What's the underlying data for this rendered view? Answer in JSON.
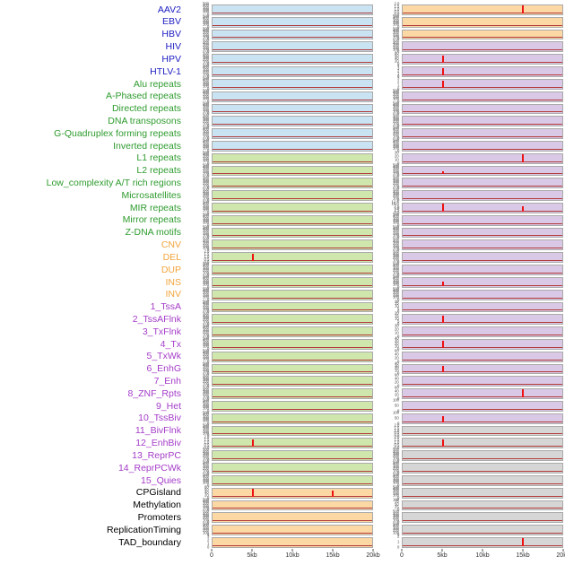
{
  "chart_data": {
    "type": "area",
    "subtype": "multi-track genomic signal tracks (two panels per annotation row, signal near zero with red spikes)",
    "x_axis": {
      "ticks": [
        "0",
        "5kb",
        "10kb",
        "15kb",
        "20kb"
      ],
      "min_kb": 0,
      "max_kb": 20
    },
    "legend_position": "none",
    "grid": false,
    "colors": {
      "labels": {
        "virus": "#1c1cc2",
        "repeat": "#2e9b2e",
        "sv": "#f2a43c",
        "chromhmm": "#a43cc8",
        "other": "#000000"
      },
      "panels": {
        "blue": "#c9e3f2",
        "green": "#cfe6ad",
        "orange": "#fcd8a4",
        "purple": "#dac9e6",
        "gray": "#d6d6d6"
      },
      "spike": "#ee1111",
      "baseline": "#b23b3b",
      "panel_border": "#aaaaaa"
    },
    "default_yticks": [
      "500",
      "400",
      "300",
      "200",
      "100",
      "0"
    ],
    "rows": [
      {
        "label": "AAV2",
        "group": "virus",
        "left": {
          "bg": "blue"
        },
        "right": {
          "bg": "orange",
          "yticks": [
            "2.0",
            "1.5",
            "1.0",
            "0.5",
            "0.0"
          ],
          "spikes": [
            {
              "x_kb": 15,
              "h": 0.88
            }
          ]
        }
      },
      {
        "label": "EBV",
        "group": "virus",
        "left": {
          "bg": "blue"
        },
        "right": {
          "bg": "orange"
        }
      },
      {
        "label": "HBV",
        "group": "virus",
        "left": {
          "bg": "blue"
        },
        "right": {
          "bg": "orange"
        }
      },
      {
        "label": "HIV",
        "group": "virus",
        "left": {
          "bg": "blue"
        },
        "right": {
          "bg": "purple"
        }
      },
      {
        "label": "HPV",
        "group": "virus",
        "left": {
          "bg": "blue"
        },
        "right": {
          "bg": "purple",
          "yticks": [
            "80",
            "60",
            "40",
            "20",
            "0"
          ],
          "spikes": [
            {
              "x_kb": 5,
              "h": 0.85
            }
          ]
        }
      },
      {
        "label": "HTLV-1",
        "group": "virus",
        "left": {
          "bg": "blue"
        },
        "right": {
          "bg": "purple",
          "yticks": [
            "4",
            "3",
            "2",
            "1",
            "0"
          ],
          "spikes": [
            {
              "x_kb": 5,
              "h": 0.8
            }
          ]
        }
      },
      {
        "label": "Alu repeats",
        "group": "repeat",
        "left": {
          "bg": "blue"
        },
        "right": {
          "bg": "purple",
          "yticks": [
            "3",
            "2",
            "1",
            "0"
          ],
          "spikes": [
            {
              "x_kb": 5,
              "h": 0.75
            }
          ]
        }
      },
      {
        "label": "A-Phased repeats",
        "group": "repeat",
        "left": {
          "bg": "blue"
        },
        "right": {
          "bg": "purple"
        }
      },
      {
        "label": "Directed repeats",
        "group": "repeat",
        "left": {
          "bg": "blue"
        },
        "right": {
          "bg": "purple"
        }
      },
      {
        "label": "DNA transposons",
        "group": "repeat",
        "left": {
          "bg": "blue"
        },
        "right": {
          "bg": "purple"
        }
      },
      {
        "label": "G-Quadruplex forming repeats",
        "group": "repeat",
        "left": {
          "bg": "blue"
        },
        "right": {
          "bg": "purple"
        }
      },
      {
        "label": "Inverted repeats",
        "group": "repeat",
        "left": {
          "bg": "blue"
        },
        "right": {
          "bg": "purple"
        }
      },
      {
        "label": "L1 repeats",
        "group": "repeat",
        "left": {
          "bg": "green"
        },
        "right": {
          "bg": "purple",
          "yticks": [
            "30",
            "20",
            "10",
            "0"
          ],
          "spikes": [
            {
              "x_kb": 15,
              "h": 0.85
            }
          ]
        }
      },
      {
        "label": "L2 repeats",
        "group": "repeat",
        "left": {
          "bg": "green"
        },
        "right": {
          "bg": "purple",
          "spikes": [
            {
              "x_kb": 5,
              "h": 0.35
            }
          ]
        }
      },
      {
        "label": "Low_complexity A/T rich regions",
        "group": "repeat",
        "left": {
          "bg": "green"
        },
        "right": {
          "bg": "purple"
        }
      },
      {
        "label": "Microsatellites",
        "group": "repeat",
        "left": {
          "bg": "green"
        },
        "right": {
          "bg": "purple"
        }
      },
      {
        "label": "MIR repeats",
        "group": "repeat",
        "left": {
          "bg": "green"
        },
        "right": {
          "bg": "purple",
          "yticks": [
            "12.5",
            "10.0",
            "7.5",
            "5.0",
            "2.5",
            "0.0"
          ],
          "spikes": [
            {
              "x_kb": 5,
              "h": 0.85
            },
            {
              "x_kb": 15,
              "h": 0.55
            }
          ]
        }
      },
      {
        "label": "Mirror repeats",
        "group": "repeat",
        "left": {
          "bg": "green"
        },
        "right": {
          "bg": "purple"
        }
      },
      {
        "label": "Z-DNA motifs",
        "group": "repeat",
        "left": {
          "bg": "green"
        },
        "right": {
          "bg": "purple"
        }
      },
      {
        "label": "CNV",
        "group": "sv",
        "left": {
          "bg": "green"
        },
        "right": {
          "bg": "purple"
        }
      },
      {
        "label": "DEL",
        "group": "sv",
        "left": {
          "bg": "green",
          "yticks": [
            "2.0",
            "1.5",
            "1.0",
            "0.5",
            "0.0"
          ],
          "spikes": [
            {
              "x_kb": 5,
              "h": 0.85
            }
          ]
        },
        "right": {
          "bg": "purple"
        }
      },
      {
        "label": "DUP",
        "group": "sv",
        "left": {
          "bg": "green"
        },
        "right": {
          "bg": "purple"
        }
      },
      {
        "label": "INS",
        "group": "sv",
        "left": {
          "bg": "green"
        },
        "right": {
          "bg": "purple",
          "spikes": [
            {
              "x_kb": 5,
              "h": 0.5
            }
          ]
        }
      },
      {
        "label": "INV",
        "group": "sv",
        "left": {
          "bg": "green"
        },
        "right": {
          "bg": "purple"
        }
      },
      {
        "label": "1_TssA",
        "group": "chromhmm",
        "left": {
          "bg": "green"
        },
        "right": {
          "bg": "purple",
          "yticks": [
            "20",
            "15",
            "10",
            "5",
            "0"
          ]
        }
      },
      {
        "label": "2_TssAFlnk",
        "group": "chromhmm",
        "left": {
          "bg": "green"
        },
        "right": {
          "bg": "purple",
          "yticks": [
            "20",
            "15",
            "10",
            "5",
            "0"
          ],
          "spikes": [
            {
              "x_kb": 5,
              "h": 0.8
            }
          ]
        }
      },
      {
        "label": "3_TxFlnk",
        "group": "chromhmm",
        "left": {
          "bg": "green"
        },
        "right": {
          "bg": "purple",
          "yticks": [
            "30",
            "20",
            "10",
            "0"
          ]
        }
      },
      {
        "label": "4_Tx",
        "group": "chromhmm",
        "left": {
          "bg": "green"
        },
        "right": {
          "bg": "purple",
          "yticks": [
            "40",
            "30",
            "20",
            "10",
            "0"
          ],
          "spikes": [
            {
              "x_kb": 5,
              "h": 0.75
            }
          ]
        }
      },
      {
        "label": "5_TxWk",
        "group": "chromhmm",
        "left": {
          "bg": "green"
        },
        "right": {
          "bg": "purple",
          "yticks": [
            "60",
            "40",
            "20",
            "0"
          ]
        }
      },
      {
        "label": "6_EnhG",
        "group": "chromhmm",
        "left": {
          "bg": "green"
        },
        "right": {
          "bg": "purple",
          "yticks": [
            "40",
            "30",
            "20",
            "10",
            "0"
          ],
          "spikes": [
            {
              "x_kb": 5,
              "h": 0.8
            }
          ]
        }
      },
      {
        "label": "7_Enh",
        "group": "chromhmm",
        "left": {
          "bg": "green"
        },
        "right": {
          "bg": "purple",
          "yticks": [
            "60",
            "40",
            "20",
            "0"
          ]
        }
      },
      {
        "label": "8_ZNF_Rpts",
        "group": "chromhmm",
        "left": {
          "bg": "green"
        },
        "right": {
          "bg": "purple",
          "yticks": [
            "60",
            "40",
            "20",
            "0"
          ],
          "spikes": [
            {
              "x_kb": 15,
              "h": 0.9
            }
          ]
        }
      },
      {
        "label": "9_Het",
        "group": "chromhmm",
        "left": {
          "bg": "green"
        },
        "right": {
          "bg": "purple",
          "yticks": [
            "100",
            "50",
            "0"
          ]
        }
      },
      {
        "label": "10_TssBiv",
        "group": "chromhmm",
        "left": {
          "bg": "green"
        },
        "right": {
          "bg": "purple",
          "yticks": [
            "100",
            "50",
            "0"
          ],
          "spikes": [
            {
              "x_kb": 5,
              "h": 0.7
            }
          ]
        }
      },
      {
        "label": "11_BivFlnk",
        "group": "chromhmm",
        "left": {
          "bg": "green"
        },
        "right": {
          "bg": "gray",
          "yticks": [
            "2.0",
            "1.5",
            "1.0",
            "0.5",
            "0.0"
          ]
        }
      },
      {
        "label": "12_EnhBiv",
        "group": "chromhmm",
        "left": {
          "bg": "green",
          "yticks": [
            "2.0",
            "1.5",
            "1.0",
            "0.5",
            "0.0"
          ],
          "spikes": [
            {
              "x_kb": 5,
              "h": 0.85
            }
          ]
        },
        "right": {
          "bg": "gray",
          "yticks": [
            "2.0",
            "1.5",
            "1.0",
            "0.5",
            "0.0"
          ],
          "spikes": [
            {
              "x_kb": 5,
              "h": 0.8
            }
          ]
        }
      },
      {
        "label": "13_ReprPC",
        "group": "chromhmm",
        "left": {
          "bg": "green"
        },
        "right": {
          "bg": "gray"
        }
      },
      {
        "label": "14_ReprPCWk",
        "group": "chromhmm",
        "left": {
          "bg": "green"
        },
        "right": {
          "bg": "gray"
        }
      },
      {
        "label": "15_Quies",
        "group": "chromhmm",
        "left": {
          "bg": "green"
        },
        "right": {
          "bg": "gray"
        }
      },
      {
        "label": "CPGisland",
        "group": "other",
        "left": {
          "bg": "orange",
          "yticks": [
            "80",
            "60",
            "40",
            "20",
            "0"
          ],
          "spikes": [
            {
              "x_kb": 5,
              "h": 0.9
            },
            {
              "x_kb": 15,
              "h": 0.7
            }
          ]
        },
        "right": {
          "bg": "gray"
        }
      },
      {
        "label": "Methylation",
        "group": "other",
        "left": {
          "bg": "orange"
        },
        "right": {
          "bg": "gray",
          "yticks": [
            "100",
            "75",
            "50",
            "25",
            "0"
          ]
        }
      },
      {
        "label": "Promoters",
        "group": "other",
        "left": {
          "bg": "orange"
        },
        "right": {
          "bg": "gray"
        }
      },
      {
        "label": "ReplicationTiming",
        "group": "other",
        "left": {
          "bg": "orange"
        },
        "right": {
          "bg": "gray"
        }
      },
      {
        "label": "TAD_boundary",
        "group": "other",
        "left": {
          "bg": "orange",
          "yticks": [
            "3",
            "2",
            "1",
            "0"
          ]
        },
        "right": {
          "bg": "gray",
          "yticks": [
            "2",
            "1",
            "0"
          ],
          "spikes": [
            {
              "x_kb": 15,
              "h": 0.88
            }
          ]
        }
      }
    ]
  }
}
